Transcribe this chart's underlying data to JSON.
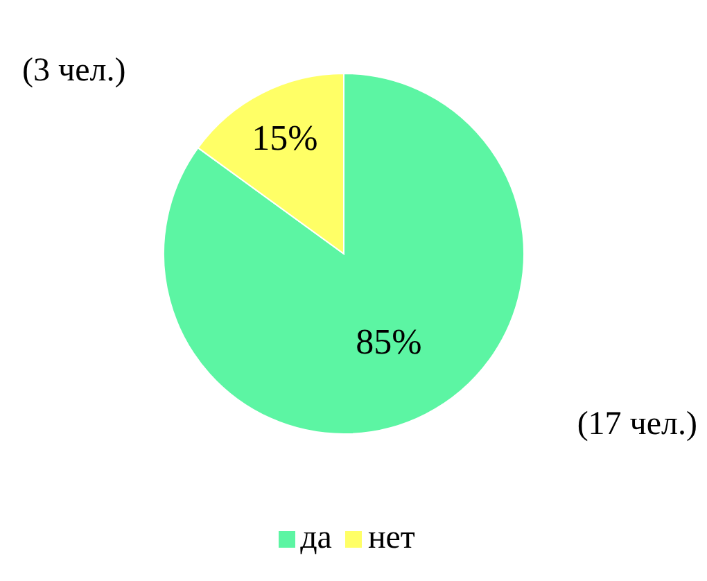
{
  "chart_data": {
    "type": "pie",
    "categories": [
      "да",
      "нет"
    ],
    "values": [
      85,
      15
    ],
    "colors": [
      "#5cf5a3",
      "#ffff66"
    ],
    "value_labels": [
      "85%",
      "15%"
    ],
    "annotations": [
      "(3 чел.)",
      "(17 чел.)"
    ],
    "legend": "bottom"
  }
}
